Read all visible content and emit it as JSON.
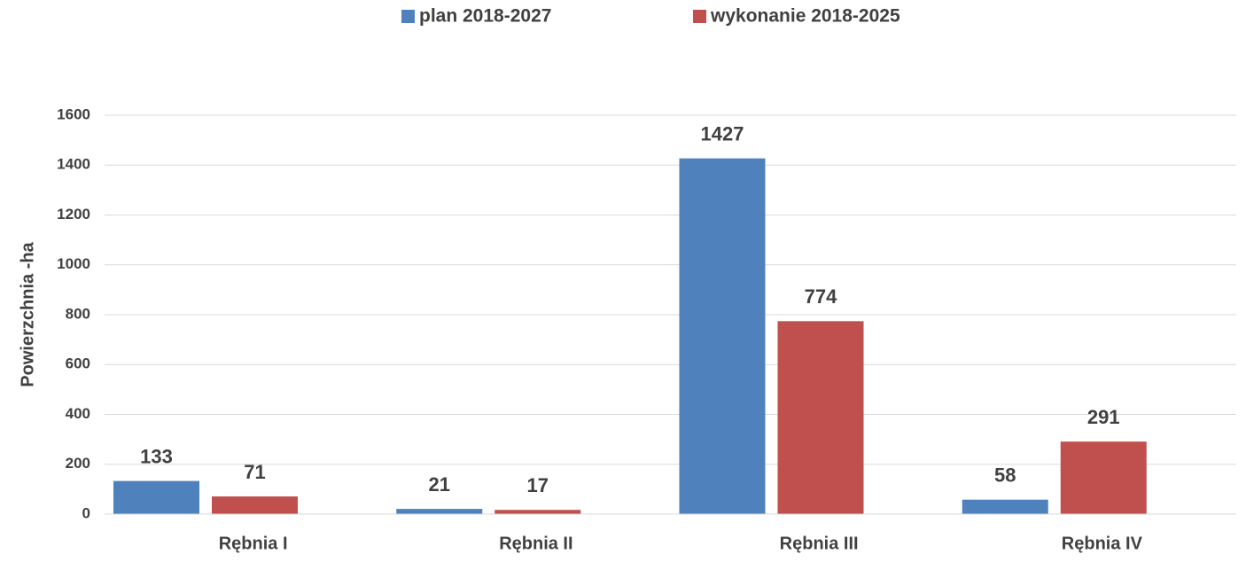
{
  "chart_data": {
    "type": "bar",
    "categories": [
      "Rębnia I",
      "Rębnia II",
      "Rębnia III",
      "Rębnia IV"
    ],
    "series": [
      {
        "name": "plan 2018-2027",
        "color": "#4f81bd",
        "values": [
          133,
          21,
          1427,
          58
        ]
      },
      {
        "name": "wykonanie 2018-2025",
        "color": "#c0504d",
        "values": [
          71,
          17,
          774,
          291
        ]
      }
    ],
    "ylabel": "Powierzchnia -ha",
    "ylim": [
      0,
      1600
    ],
    "yticks": [
      0,
      200,
      400,
      600,
      800,
      1000,
      1200,
      1400,
      1600
    ],
    "grid": true,
    "legend": "top"
  }
}
